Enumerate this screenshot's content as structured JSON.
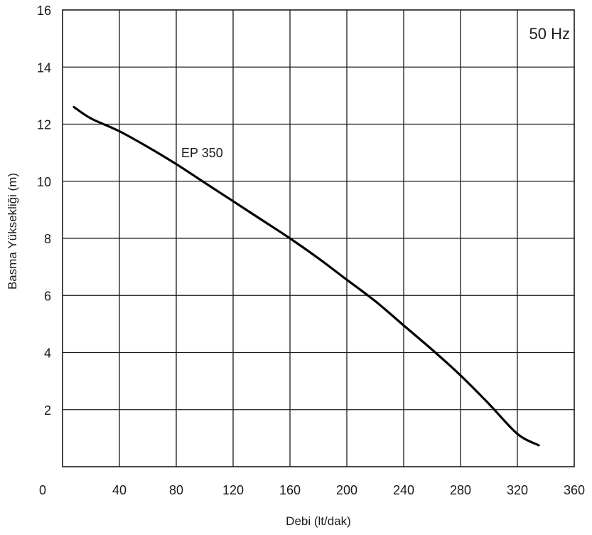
{
  "chart_data": {
    "type": "line",
    "xlabel": "Debi (lt/dak)",
    "ylabel": "Basma Yüksekliği (m)",
    "xlim": [
      0,
      360
    ],
    "ylim": [
      0,
      16
    ],
    "xticks": [
      0,
      40,
      80,
      120,
      160,
      200,
      240,
      280,
      320,
      360
    ],
    "yticks": [
      2,
      4,
      6,
      8,
      10,
      12,
      14,
      16
    ],
    "x_tick_labels": [
      "0",
      "40",
      "80",
      "120",
      "160",
      "200",
      "240",
      "280",
      "320",
      "360"
    ],
    "y_tick_labels": [
      "2",
      "4",
      "6",
      "8",
      "10",
      "12",
      "14",
      "16"
    ],
    "grid": true,
    "annotations": [
      {
        "text": "50 Hz",
        "position": "top-right"
      }
    ],
    "series": [
      {
        "name": "EP 350",
        "color": "#000000",
        "x": [
          8,
          20,
          40,
          60,
          80,
          100,
          120,
          140,
          160,
          180,
          200,
          220,
          240,
          260,
          280,
          300,
          320,
          335
        ],
        "y": [
          12.6,
          12.2,
          11.75,
          11.2,
          10.6,
          9.95,
          9.3,
          8.65,
          8.0,
          7.3,
          6.55,
          5.8,
          4.95,
          4.1,
          3.2,
          2.2,
          1.15,
          0.75
        ]
      }
    ]
  }
}
